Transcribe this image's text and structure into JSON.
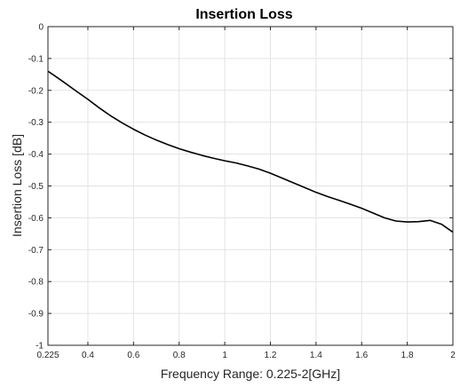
{
  "chart_data": {
    "type": "line",
    "title": "Insertion Loss",
    "xlabel": "Frequency Range: 0.225-2[GHz]",
    "ylabel": "Insertion Loss [dB]",
    "xlim": [
      0.225,
      2
    ],
    "ylim": [
      -1,
      0
    ],
    "xticks": [
      0.225,
      0.4,
      0.6,
      0.8,
      1,
      1.2,
      1.4,
      1.6,
      1.8,
      2
    ],
    "xtick_labels": [
      "0.225",
      "0.4",
      "0.6",
      "0.8",
      "1",
      "1.2",
      "1.4",
      "1.6",
      "1.8",
      "2"
    ],
    "yticks": [
      0,
      -0.1,
      -0.2,
      -0.3,
      -0.4,
      -0.5,
      -0.6,
      -0.7,
      -0.8,
      -0.9,
      -1
    ],
    "ytick_labels": [
      "0",
      "-0.1",
      "-0.2",
      "-0.3",
      "-0.4",
      "-0.5",
      "-0.6",
      "-0.7",
      "-0.8",
      "-0.9",
      "-1"
    ],
    "grid": true,
    "series": [
      {
        "color": "#000000",
        "x": [
          0.225,
          0.25,
          0.3,
          0.35,
          0.4,
          0.45,
          0.5,
          0.55,
          0.6,
          0.65,
          0.7,
          0.75,
          0.8,
          0.85,
          0.9,
          0.95,
          1.0,
          1.05,
          1.1,
          1.15,
          1.2,
          1.25,
          1.3,
          1.35,
          1.4,
          1.45,
          1.5,
          1.55,
          1.6,
          1.65,
          1.7,
          1.75,
          1.8,
          1.85,
          1.9,
          1.95,
          2.0
        ],
        "y": [
          -0.14,
          -0.152,
          -0.177,
          -0.203,
          -0.228,
          -0.255,
          -0.28,
          -0.302,
          -0.322,
          -0.34,
          -0.356,
          -0.37,
          -0.383,
          -0.394,
          -0.404,
          -0.413,
          -0.421,
          -0.428,
          -0.437,
          -0.447,
          -0.46,
          -0.475,
          -0.49,
          -0.505,
          -0.52,
          -0.533,
          -0.545,
          -0.557,
          -0.57,
          -0.585,
          -0.6,
          -0.61,
          -0.613,
          -0.612,
          -0.608,
          -0.62,
          -0.645
        ]
      }
    ]
  }
}
